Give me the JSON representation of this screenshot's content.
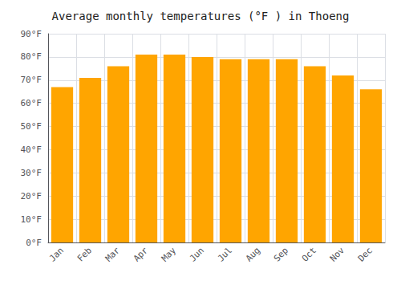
{
  "chart_data": {
    "type": "bar",
    "title": "Average monthly temperatures (°F ) in Thoeng",
    "categories": [
      "Jan",
      "Feb",
      "Mar",
      "Apr",
      "May",
      "Jun",
      "Jul",
      "Aug",
      "Sep",
      "Oct",
      "Nov",
      "Dec"
    ],
    "values": [
      67,
      71,
      76,
      81,
      81,
      80,
      79,
      79,
      79,
      76,
      72,
      66
    ],
    "color": "#FFA500",
    "ylim": [
      0,
      90
    ],
    "yticks": [
      {
        "value": 0,
        "label": "0°F"
      },
      {
        "value": 10,
        "label": "10°F"
      },
      {
        "value": 20,
        "label": "20°F"
      },
      {
        "value": 30,
        "label": "30°F"
      },
      {
        "value": 40,
        "label": "40°F"
      },
      {
        "value": 50,
        "label": "50°F"
      },
      {
        "value": 60,
        "label": "60°F"
      },
      {
        "value": 70,
        "label": "70°F"
      },
      {
        "value": 80,
        "label": "80°F"
      },
      {
        "value": 90,
        "label": "90°F"
      }
    ],
    "grid": true
  }
}
